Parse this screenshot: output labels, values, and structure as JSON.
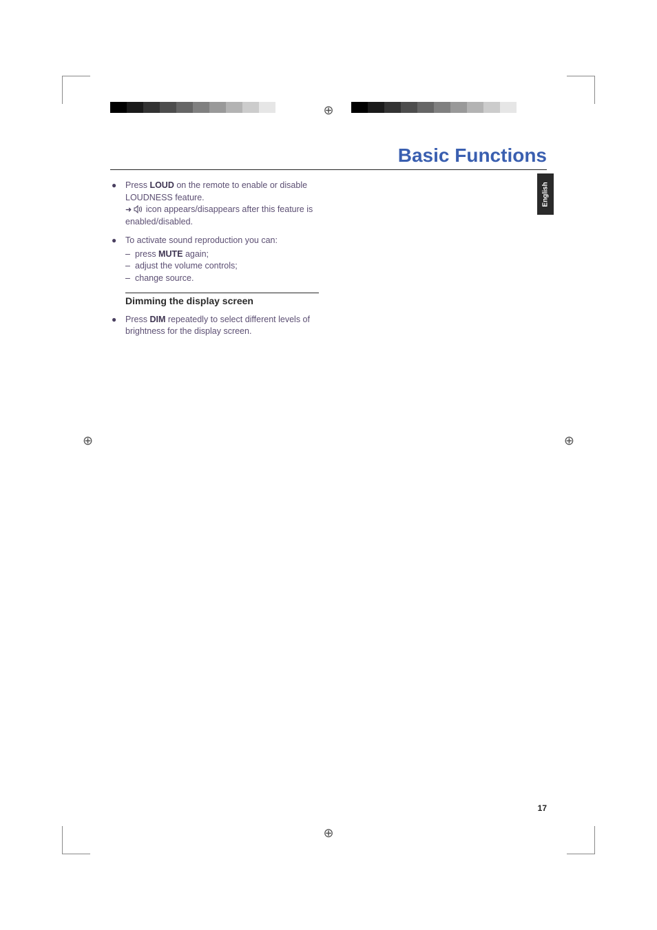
{
  "colorbar": {
    "shades": [
      "#000000",
      "#1a1a1a",
      "#333333",
      "#4d4d4d",
      "#666666",
      "#808080",
      "#999999",
      "#b3b3b3",
      "#cccccc",
      "#e6e6e6",
      "#ffffff"
    ]
  },
  "registration_glyph": "⊕",
  "header": {
    "title": "Basic Functions",
    "title_color": "#3a5fb0",
    "title_fontsize": 28
  },
  "lang_tab": {
    "label": "English",
    "bg": "#2a2a2a",
    "fg": "#ffffff"
  },
  "content": {
    "items": [
      {
        "type": "bullet",
        "runs": [
          {
            "t": "Press "
          },
          {
            "t": "LOUD",
            "bold": true
          },
          {
            "t": " on the remote to enable or disable LOUDNESS feature."
          }
        ],
        "arrow_line": {
          "icon": "speaker",
          "runs": [
            {
              "t": " icon appears/disappears after this feature is enabled/disabled."
            }
          ]
        }
      },
      {
        "type": "bullet",
        "runs": [
          {
            "t": "To activate sound reproduction you can:"
          }
        ],
        "dashes": [
          {
            "runs": [
              {
                "t": "press "
              },
              {
                "t": "MUTE",
                "bold": true
              },
              {
                "t": " again;"
              }
            ]
          },
          {
            "runs": [
              {
                "t": "adjust the volume controls;"
              }
            ]
          },
          {
            "runs": [
              {
                "t": "change source."
              }
            ]
          }
        ]
      },
      {
        "type": "subheading",
        "text": "Dimming the display screen"
      },
      {
        "type": "bullet",
        "runs": [
          {
            "t": "Press "
          },
          {
            "t": "DIM",
            "bold": true
          },
          {
            "t": " repeatedly to select different levels of brightness for the display screen."
          }
        ]
      }
    ]
  },
  "page_number": "17",
  "text_color": "#5c4f73",
  "background_color": "#ffffff"
}
